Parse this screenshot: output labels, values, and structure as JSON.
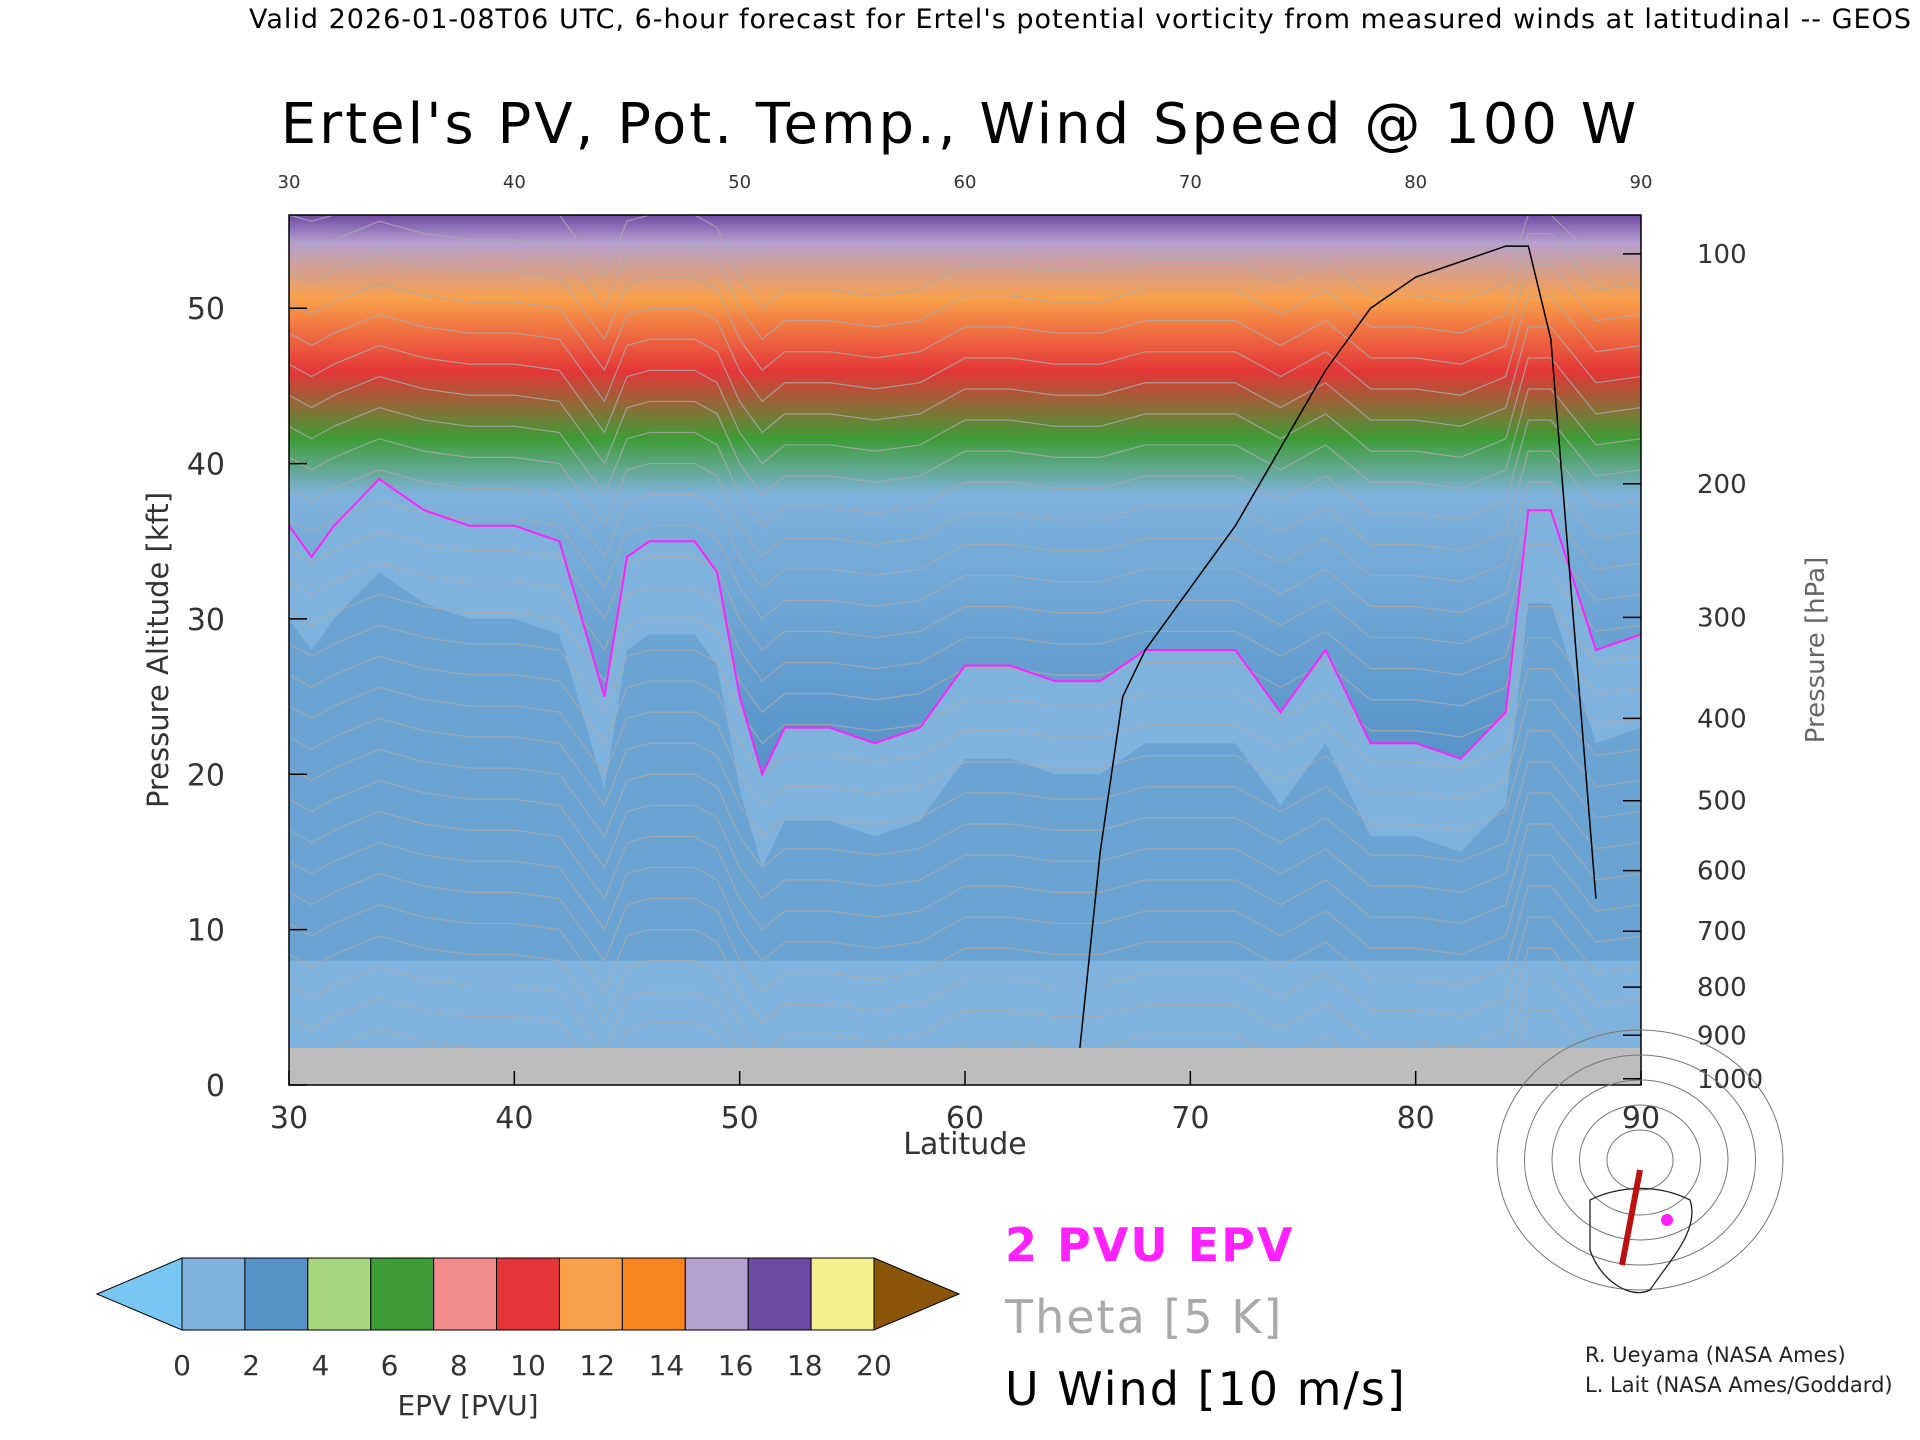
{
  "header": "Valid 2026-01-08T06 UTC, 6-hour forecast for Ertel's potential vorticity from measured winds at latitudinal -- GEOS",
  "title": "Ertel's PV, Pot. Temp., Wind Speed @ 100 W",
  "chart_data": {
    "type": "heatmap",
    "title": "Ertel's PV, Pot. Temp., Wind Speed @ 100 W",
    "xlabel": "Latitude",
    "ylabel": "Pressure Altitude [kft]",
    "ylabel_right": "Pressure [hPa]",
    "xlim": [
      30,
      90
    ],
    "ylim": [
      0,
      56
    ],
    "x_ticks": [
      "30",
      "40",
      "50",
      "60",
      "70",
      "80",
      "90"
    ],
    "y_ticks": [
      0,
      10,
      20,
      30,
      40,
      50
    ],
    "pressure_ticks": [
      {
        "label": "100",
        "kft": 53.5
      },
      {
        "label": "200",
        "kft": 38.7
      },
      {
        "label": "300",
        "kft": 30.1
      },
      {
        "label": "400",
        "kft": 23.6
      },
      {
        "label": "500",
        "kft": 18.3
      },
      {
        "label": "600",
        "kft": 13.8
      },
      {
        "label": "700",
        "kft": 9.9
      },
      {
        "label": "800",
        "kft": 6.3
      },
      {
        "label": "900",
        "kft": 3.2
      },
      {
        "label": "1000",
        "kft": 0.4
      }
    ],
    "layers": [
      {
        "name": "EPV",
        "units": "PVU",
        "style": "filled"
      },
      {
        "name": "2 PVU EPV",
        "style": "magenta contour"
      },
      {
        "name": "Theta",
        "interval": "5 K",
        "style": "gray contours"
      },
      {
        "name": "U Wind",
        "interval": "10 m/s",
        "style": "black contours"
      }
    ],
    "pv2_tropopause_kft": {
      "lat": [
        30,
        31,
        32,
        34,
        36,
        38,
        40,
        42,
        44,
        45,
        46,
        48,
        49,
        50,
        51,
        52,
        54,
        56,
        58,
        60,
        62,
        64,
        66,
        68,
        70,
        72,
        74,
        76,
        78,
        80,
        82,
        84,
        85,
        86,
        88,
        90
      ],
      "kft": [
        36,
        34,
        36,
        39,
        37,
        36,
        36,
        35,
        25,
        34,
        35,
        35,
        33,
        25,
        20,
        23,
        23,
        22,
        23,
        27,
        27,
        26,
        26,
        28,
        28,
        28,
        24,
        28,
        22,
        22,
        21,
        24,
        37,
        37,
        28,
        29
      ]
    },
    "wind_zero_line": {
      "lat": [
        65,
        66,
        67,
        68,
        70,
        72,
        74,
        76,
        78,
        80,
        82,
        84,
        85,
        86,
        87,
        88
      ],
      "kft": [
        1,
        15,
        25,
        28,
        32,
        36,
        41,
        46,
        50,
        52,
        53,
        54,
        54,
        48,
        30,
        12
      ]
    },
    "colorbar": {
      "label": "EPV [PVU]",
      "ticks": [
        "0",
        "2",
        "4",
        "6",
        "8",
        "10",
        "12",
        "14",
        "16",
        "18",
        "20"
      ],
      "colors": [
        "#7fb2dc",
        "#5592c8",
        "#a8d67c",
        "#3e9c37",
        "#f28c8c",
        "#e43638",
        "#f9a04a",
        "#f98520",
        "#b5a0cf",
        "#6f4aa4",
        "#f4ee8e"
      ],
      "under_color": "#7ac6f2",
      "over_color": "#8a5508"
    }
  },
  "legend": {
    "pv_label": "2 PVU EPV",
    "theta_label": "Theta [5 K]",
    "wind_label": "U Wind [10 m/s]",
    "pv_color": "#ff22ff",
    "theta_color": "#aaaaaa",
    "wind_color": "#000000"
  },
  "credits": {
    "line1": "R. Ueyama (NASA Ames)",
    "line2": "L. Lait (NASA Ames/Goddard)"
  }
}
